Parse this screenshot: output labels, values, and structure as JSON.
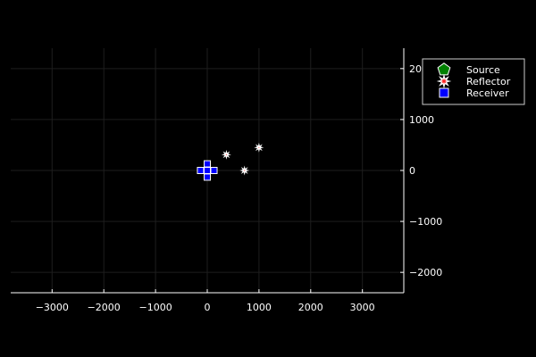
{
  "chart_data": {
    "type": "scatter",
    "title": "",
    "xlabel": "",
    "ylabel": "",
    "xlim": [
      -3800,
      3800
    ],
    "ylim": [
      -2400,
      2400
    ],
    "x_ticks": [
      -3000,
      -2000,
      -1000,
      0,
      1000,
      2000,
      3000
    ],
    "y_ticks": [
      -2000,
      -1000,
      0,
      1000,
      2000
    ],
    "x_tick_labels": [
      "−3000",
      "−2000",
      "−1000",
      "0",
      "1000",
      "2000",
      "3000"
    ],
    "y_tick_labels": [
      "−2000",
      "−1000",
      "0",
      "1000",
      "2000"
    ],
    "y_axis_side": "right",
    "grid": true,
    "legend_position": "top-right",
    "background": "#000000",
    "series": [
      {
        "name": "Source",
        "marker": "pentagon",
        "color": "#008000",
        "x": [],
        "y": []
      },
      {
        "name": "Reflector",
        "marker": "star",
        "color": "#ff2020",
        "x": [
          1000,
          370,
          720
        ],
        "y": [
          450,
          310,
          0
        ]
      },
      {
        "name": "Receiver",
        "marker": "square",
        "color": "#0000ff",
        "x": [
          0,
          0,
          -130,
          0,
          130,
          0
        ],
        "y": [
          130,
          0,
          0,
          0,
          0,
          -130
        ]
      }
    ]
  }
}
